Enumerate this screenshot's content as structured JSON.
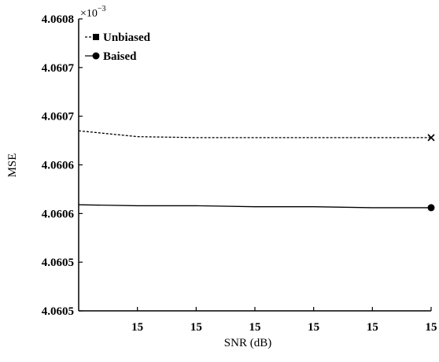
{
  "chart_data": {
    "type": "line",
    "xlabel": "SNR (dB)",
    "ylabel": "MSE",
    "y_exponent_label": "×10",
    "y_exponent_power": "−3",
    "x_tick_labels": [
      "15",
      "15",
      "15",
      "15",
      "15",
      "15"
    ],
    "y_tick_labels": [
      "4.0605",
      "4.0605",
      "4.0606",
      "4.0606",
      "4.0607",
      "4.0607",
      "4.0608"
    ],
    "ylim": [
      4.0605,
      4.0608
    ],
    "x": [
      0,
      1,
      2,
      3,
      4,
      5,
      6
    ],
    "series": [
      {
        "name": "Unbiased",
        "marker": "square",
        "end_marker": "x",
        "line_style": "dashed",
        "values": [
          4.060685,
          4.060679,
          4.060678,
          4.060678,
          4.060678,
          4.060678,
          4.060678
        ]
      },
      {
        "name": "Baised",
        "marker": "circle",
        "line_style": "solid",
        "values": [
          4.060609,
          4.060608,
          4.060608,
          4.060607,
          4.060607,
          4.060606,
          4.060606
        ]
      }
    ],
    "legend_position": "top-left",
    "grid": false,
    "colors": {
      "line": "#000000",
      "background": "#ffffff"
    }
  }
}
